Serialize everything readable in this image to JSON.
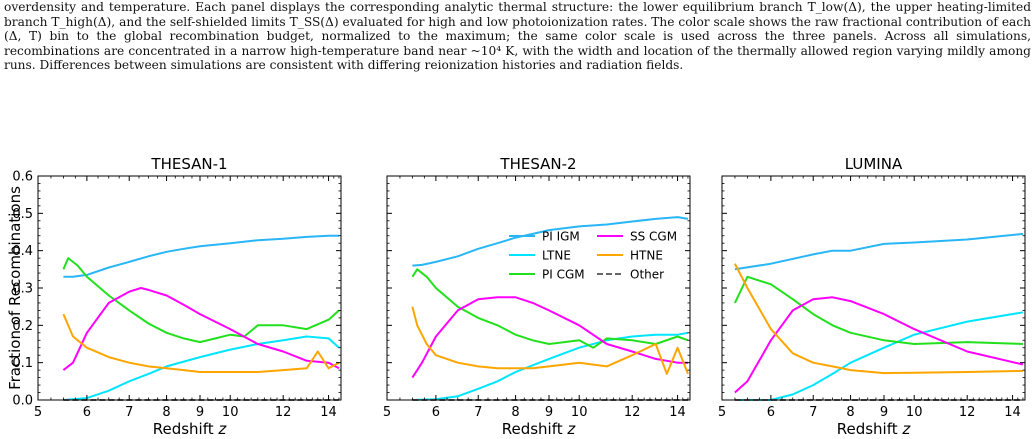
{
  "caption": "overdensity and temperature. Each panel displays the corresponding analytic thermal structure: the lower equilibrium branch T_low(Δ), the upper heating-limited branch T_high(Δ), and the self-shielded limits T_SS(Δ) evaluated for high and low photoionization rates. The color scale shows the raw fractional contribution of each (Δ, T) bin to the global recombination budget, normalized to the maximum; the same color scale is used across the three panels. Across all simulations, recombinations are concentrated in a narrow high-temperature band near ~10⁴ K, with the width and location of the thermally allowed region varying mildly among runs. Differences between simulations are consistent with differing reionization histories and radiation fields.",
  "colors": {
    "PI IGM": "#29b6f6",
    "LTNE": "#00e5ff",
    "PI CGM": "#22e01c",
    "SS CGM": "#ff00ff",
    "HTNE": "#ffa500",
    "Other": "#666666"
  },
  "legend": [
    "PI IGM",
    "SS CGM",
    "LTNE",
    "HTNE",
    "PI CGM",
    "Other"
  ],
  "chart_data": [
    {
      "type": "line",
      "title": "THESAN-1",
      "xlabel": "Redshift z",
      "ylabel": "Fraction of Recombinations",
      "xscale": "log(1+z)",
      "xlim": [
        5,
        14.6
      ],
      "ylim": [
        0,
        0.6
      ],
      "xticks": [
        5,
        6,
        7,
        8,
        9,
        10,
        12,
        14
      ],
      "yticks": [
        0.0,
        0.1,
        0.2,
        0.3,
        0.4,
        0.5,
        0.6
      ],
      "series": [
        {
          "name": "PI IGM",
          "x": [
            5.5,
            5.7,
            6.0,
            6.5,
            7.0,
            7.5,
            8.0,
            8.5,
            9.0,
            10.0,
            11.0,
            12.0,
            13.0,
            14.0,
            14.5
          ],
          "y": [
            0.33,
            0.33,
            0.335,
            0.355,
            0.37,
            0.385,
            0.397,
            0.405,
            0.412,
            0.42,
            0.428,
            0.432,
            0.437,
            0.44,
            0.44
          ]
        },
        {
          "name": "LTNE",
          "x": [
            5.5,
            6.0,
            6.5,
            7.0,
            7.5,
            8.0,
            9.0,
            10.0,
            11.0,
            12.0,
            13.0,
            14.0,
            14.5
          ],
          "y": [
            0.0,
            0.005,
            0.025,
            0.05,
            0.07,
            0.09,
            0.115,
            0.135,
            0.15,
            0.16,
            0.17,
            0.165,
            0.14
          ]
        },
        {
          "name": "PI CGM",
          "x": [
            5.5,
            5.6,
            5.8,
            6.0,
            6.5,
            7.0,
            7.5,
            8.0,
            8.5,
            9.0,
            9.5,
            10.0,
            10.5,
            11.0,
            12.0,
            13.0,
            14.0,
            14.5
          ],
          "y": [
            0.35,
            0.38,
            0.36,
            0.33,
            0.28,
            0.24,
            0.205,
            0.18,
            0.165,
            0.155,
            0.165,
            0.175,
            0.17,
            0.2,
            0.2,
            0.19,
            0.215,
            0.24
          ]
        },
        {
          "name": "SS CGM",
          "x": [
            5.5,
            5.7,
            6.0,
            6.5,
            7.0,
            7.3,
            7.5,
            8.0,
            8.5,
            9.0,
            10.0,
            11.0,
            12.0,
            13.0,
            14.0,
            14.5
          ],
          "y": [
            0.08,
            0.1,
            0.18,
            0.26,
            0.29,
            0.3,
            0.295,
            0.28,
            0.255,
            0.23,
            0.19,
            0.15,
            0.13,
            0.105,
            0.1,
            0.085
          ]
        },
        {
          "name": "HTNE",
          "x": [
            5.5,
            5.7,
            6.0,
            6.5,
            7.0,
            7.5,
            8.0,
            8.5,
            9.0,
            10.0,
            11.0,
            12.0,
            13.0,
            13.5,
            14.0,
            14.5
          ],
          "y": [
            0.23,
            0.17,
            0.14,
            0.115,
            0.1,
            0.09,
            0.085,
            0.08,
            0.075,
            0.075,
            0.075,
            0.08,
            0.085,
            0.13,
            0.085,
            0.1
          ]
        },
        {
          "name": "Other",
          "x": [
            5.5,
            14.5
          ],
          "y": [
            0.0,
            0.0
          ]
        }
      ]
    },
    {
      "type": "line",
      "title": "THESAN-2",
      "xlabel": "Redshift z",
      "xscale": "log(1+z)",
      "xlim": [
        5,
        14.6
      ],
      "ylim": [
        0,
        0.6
      ],
      "xticks": [
        5,
        6,
        7,
        8,
        9,
        10,
        12,
        14
      ],
      "yticks": [
        0.0,
        0.1,
        0.2,
        0.3,
        0.4,
        0.5,
        0.6
      ],
      "series": [
        {
          "name": "PI IGM",
          "x": [
            5.5,
            5.7,
            6.0,
            6.5,
            7.0,
            7.5,
            8.0,
            8.5,
            9.0,
            10.0,
            11.0,
            12.0,
            13.0,
            14.0,
            14.5
          ],
          "y": [
            0.36,
            0.362,
            0.37,
            0.385,
            0.405,
            0.42,
            0.435,
            0.445,
            0.455,
            0.465,
            0.47,
            0.478,
            0.485,
            0.49,
            0.485
          ]
        },
        {
          "name": "LTNE",
          "x": [
            5.5,
            6.0,
            6.5,
            7.0,
            7.5,
            8.0,
            9.0,
            10.0,
            11.0,
            12.0,
            13.0,
            14.0,
            14.5
          ],
          "y": [
            0.0,
            0.002,
            0.01,
            0.03,
            0.05,
            0.075,
            0.11,
            0.14,
            0.16,
            0.17,
            0.175,
            0.175,
            0.18
          ]
        },
        {
          "name": "PI CGM",
          "x": [
            5.5,
            5.6,
            5.8,
            6.0,
            6.5,
            7.0,
            7.5,
            8.0,
            8.5,
            9.0,
            9.5,
            10.0,
            10.5,
            11.0,
            12.0,
            13.0,
            14.0,
            14.5
          ],
          "y": [
            0.33,
            0.35,
            0.33,
            0.3,
            0.25,
            0.22,
            0.2,
            0.175,
            0.16,
            0.15,
            0.155,
            0.16,
            0.14,
            0.165,
            0.16,
            0.15,
            0.17,
            0.16
          ]
        },
        {
          "name": "SS CGM",
          "x": [
            5.5,
            5.7,
            6.0,
            6.5,
            7.0,
            7.5,
            8.0,
            8.5,
            9.0,
            10.0,
            11.0,
            12.0,
            13.0,
            14.0,
            14.5
          ],
          "y": [
            0.06,
            0.1,
            0.17,
            0.24,
            0.27,
            0.275,
            0.275,
            0.26,
            0.24,
            0.2,
            0.15,
            0.13,
            0.11,
            0.1,
            0.1
          ]
        },
        {
          "name": "HTNE",
          "x": [
            5.5,
            5.6,
            5.8,
            6.0,
            6.5,
            7.0,
            7.5,
            8.0,
            8.5,
            9.0,
            10.0,
            11.0,
            12.0,
            13.0,
            13.5,
            14.0,
            14.5
          ],
          "y": [
            0.25,
            0.2,
            0.15,
            0.12,
            0.1,
            0.09,
            0.085,
            0.085,
            0.085,
            0.09,
            0.1,
            0.09,
            0.12,
            0.15,
            0.07,
            0.14,
            0.07
          ]
        },
        {
          "name": "Other",
          "x": [
            5.5,
            14.5
          ],
          "y": [
            0.0,
            0.0
          ]
        }
      ]
    },
    {
      "type": "line",
      "title": "LUMINA",
      "xlabel": "Redshift z",
      "xscale": "log(1+z)",
      "xlim": [
        5,
        14.6
      ],
      "ylim": [
        0,
        0.6
      ],
      "xticks": [
        5,
        6,
        7,
        8,
        9,
        10,
        12,
        14
      ],
      "yticks": [
        0.0,
        0.1,
        0.2,
        0.3,
        0.4,
        0.5,
        0.6
      ],
      "series": [
        {
          "name": "PI IGM",
          "x": [
            5.25,
            6.0,
            7.0,
            7.5,
            8.0,
            9.0,
            10.0,
            12.0,
            14.5
          ],
          "y": [
            0.35,
            0.365,
            0.39,
            0.4,
            0.4,
            0.418,
            0.422,
            0.43,
            0.445
          ]
        },
        {
          "name": "LTNE",
          "x": [
            5.25,
            6.0,
            6.5,
            7.0,
            7.5,
            8.0,
            9.0,
            10.0,
            12.0,
            14.5
          ],
          "y": [
            0.0,
            0.0,
            0.015,
            0.04,
            0.07,
            0.1,
            0.14,
            0.175,
            0.21,
            0.235
          ]
        },
        {
          "name": "PI CGM",
          "x": [
            5.25,
            5.5,
            6.0,
            6.5,
            7.0,
            7.5,
            8.0,
            9.0,
            10.0,
            12.0,
            14.5
          ],
          "y": [
            0.26,
            0.33,
            0.31,
            0.27,
            0.23,
            0.2,
            0.18,
            0.16,
            0.15,
            0.155,
            0.15
          ]
        },
        {
          "name": "SS CGM",
          "x": [
            5.25,
            5.5,
            6.0,
            6.5,
            7.0,
            7.5,
            8.0,
            9.0,
            10.0,
            12.0,
            14.5
          ],
          "y": [
            0.02,
            0.05,
            0.16,
            0.24,
            0.27,
            0.275,
            0.265,
            0.23,
            0.19,
            0.13,
            0.095
          ]
        },
        {
          "name": "HTNE",
          "x": [
            5.25,
            5.5,
            6.0,
            6.5,
            7.0,
            7.5,
            8.0,
            9.0,
            10.0,
            12.0,
            14.5
          ],
          "y": [
            0.365,
            0.3,
            0.19,
            0.125,
            0.1,
            0.09,
            0.08,
            0.072,
            0.073,
            0.075,
            0.078
          ]
        },
        {
          "name": "Other",
          "x": [
            5.25,
            14.5
          ],
          "y": [
            0.0,
            0.0
          ]
        }
      ]
    }
  ]
}
